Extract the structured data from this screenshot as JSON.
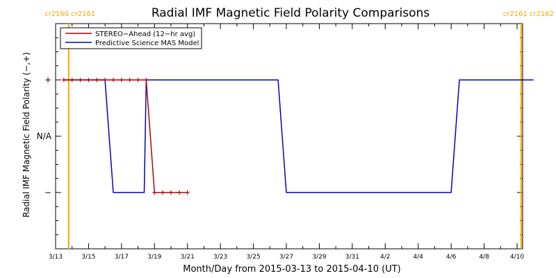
{
  "chart_data": {
    "type": "line",
    "title": "Radial IMF Magnetic Field Polarity Comparisons",
    "xlabel": "Month/Day from 2015-03-13 to 2015-04-10 (UT)",
    "ylabel": "Radial IMF Magnetic Field Polarity (−,+)",
    "xlim": [
      "2015-03-13",
      "2015-04-10"
    ],
    "ylim": [
      -2,
      2
    ],
    "x_tick_values": [
      "2015-03-13",
      "2015-03-15",
      "2015-03-17",
      "2015-03-19",
      "2015-03-21",
      "2015-03-23",
      "2015-03-25",
      "2015-03-27",
      "2015-03-29",
      "2015-03-31",
      "2015-04-02",
      "2015-04-04",
      "2015-04-06",
      "2015-04-08",
      "2015-04-10"
    ],
    "x_tick_labels": [
      "3/13",
      "3/15",
      "3/17",
      "3/19",
      "3/21",
      "3/23",
      "3/25",
      "3/27",
      "3/29",
      "3/31",
      "4/2",
      "4/4",
      "4/6",
      "4/8",
      "4/10"
    ],
    "y_tick_values": [
      1,
      0,
      -1
    ],
    "y_tick_labels": [
      "+",
      "N/A",
      "−"
    ],
    "legend_position": "top-left",
    "series": [
      {
        "name": "STEREO−Ahead (12−hr avg)",
        "color": "#b00000",
        "marker": "plus",
        "points": [
          [
            "2015-03-13 12:00",
            1
          ],
          [
            "2015-03-14 00:00",
            1
          ],
          [
            "2015-03-14 12:00",
            1
          ],
          [
            "2015-03-15 00:00",
            1
          ],
          [
            "2015-03-15 12:00",
            1
          ],
          [
            "2015-03-16 00:00",
            1
          ],
          [
            "2015-03-16 12:00",
            1
          ],
          [
            "2015-03-17 00:00",
            1
          ],
          [
            "2015-03-17 12:00",
            1
          ],
          [
            "2015-03-18 00:00",
            1
          ],
          [
            "2015-03-18 12:00",
            1
          ],
          [
            "2015-03-19 00:00",
            -1
          ],
          [
            "2015-03-19 12:00",
            -1
          ],
          [
            "2015-03-20 00:00",
            -1
          ],
          [
            "2015-03-20 12:00",
            -1
          ],
          [
            "2015-03-21 00:00",
            -1
          ]
        ]
      },
      {
        "name": "Predictive Science MAS Model",
        "color": "#0000c0",
        "marker": "none",
        "points": [
          [
            "2015-03-13 12:00",
            1
          ],
          [
            "2015-03-16 00:00",
            1
          ],
          [
            "2015-03-16 12:00",
            -1
          ],
          [
            "2015-03-18 09:00",
            -1
          ],
          [
            "2015-03-18 12:00",
            1
          ],
          [
            "2015-03-26 12:00",
            1
          ],
          [
            "2015-03-27 00:00",
            -1
          ],
          [
            "2015-04-06 00:00",
            -1
          ],
          [
            "2015-04-06 12:00",
            1
          ],
          [
            "2015-04-11 00:00",
            1
          ]
        ]
      }
    ],
    "carrington_markers": [
      {
        "date": "2015-03-13 19:00",
        "label": "cr2160 cr2161",
        "side": "left",
        "color": "#ffa500"
      },
      {
        "date": "2015-04-10 06:00",
        "label": "cr2161 cr2162",
        "side": "right",
        "color": "#ffa500"
      }
    ]
  },
  "colors": {
    "axis": "#000000",
    "background": "#ffffff"
  }
}
